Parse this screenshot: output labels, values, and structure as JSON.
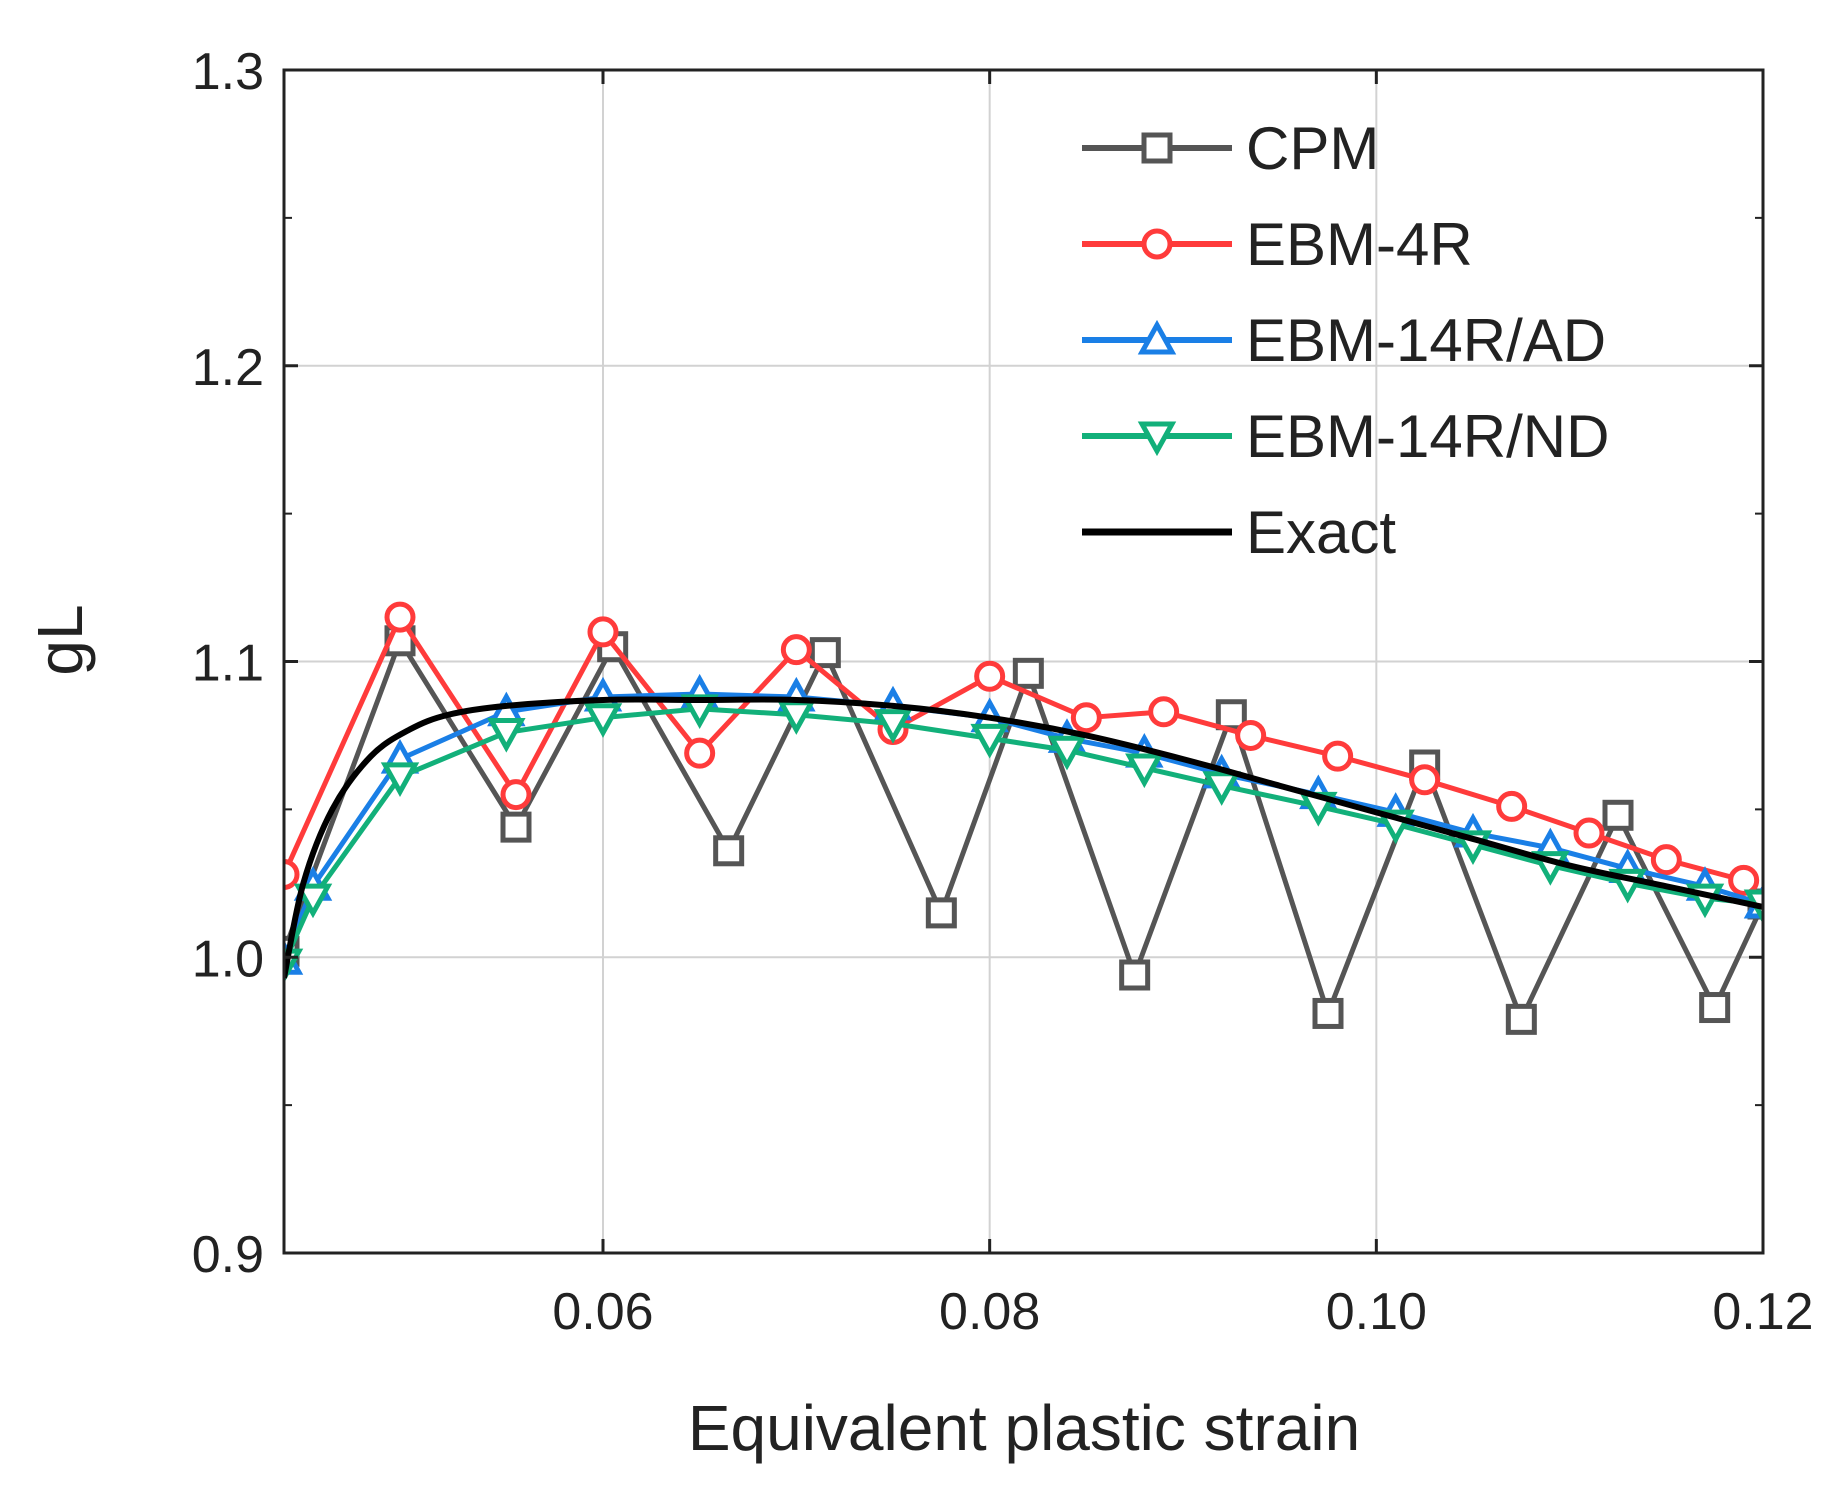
{
  "chart_data": {
    "type": "line",
    "title": "",
    "xlabel": "Equivalent plastic strain",
    "ylabel": "gL",
    "xlim": [
      0.0435,
      0.12
    ],
    "ylim": [
      0.9,
      1.3
    ],
    "grid": true,
    "legend_position": "top-right",
    "x_ticks": [
      0.06,
      0.08,
      0.1,
      0.12
    ],
    "x_tick_labels": [
      "0.06",
      "0.08",
      "0.10",
      "0.12"
    ],
    "y_ticks": [
      0.9,
      1.0,
      1.1,
      1.2,
      1.3
    ],
    "y_tick_labels": [
      "0.9",
      "1.0",
      "1.1",
      "1.2",
      "1.3"
    ],
    "y_minor_ticks": [
      0.95,
      1.05,
      1.15,
      1.25
    ],
    "series": [
      {
        "name": "CPM",
        "color": "#555555",
        "marker": "square",
        "x": [
          0.0435,
          0.0495,
          0.0555,
          0.0605,
          0.0665,
          0.0715,
          0.0775,
          0.082,
          0.0875,
          0.0925,
          0.0975,
          0.1025,
          0.1075,
          0.1125,
          0.1175,
          0.12
        ],
        "y": [
          1.002,
          1.107,
          1.044,
          1.105,
          1.036,
          1.103,
          1.015,
          1.096,
          0.994,
          1.082,
          0.981,
          1.065,
          0.979,
          1.048,
          0.983,
          1.018
        ]
      },
      {
        "name": "EBM-4R",
        "color": "#ff3b3b",
        "marker": "circle",
        "x": [
          0.0435,
          0.0495,
          0.0555,
          0.06,
          0.065,
          0.07,
          0.075,
          0.08,
          0.085,
          0.089,
          0.0935,
          0.098,
          0.1025,
          0.107,
          0.111,
          0.115,
          0.119
        ],
        "y": [
          1.028,
          1.115,
          1.055,
          1.11,
          1.069,
          1.104,
          1.077,
          1.095,
          1.081,
          1.083,
          1.075,
          1.068,
          1.06,
          1.051,
          1.042,
          1.033,
          1.026
        ]
      },
      {
        "name": "EBM-14R/AD",
        "color": "#1a7fe6",
        "marker": "triangle-up",
        "x": [
          0.0435,
          0.045,
          0.0495,
          0.055,
          0.06,
          0.065,
          0.07,
          0.075,
          0.08,
          0.084,
          0.088,
          0.092,
          0.097,
          0.101,
          0.105,
          0.109,
          0.113,
          0.117,
          0.12
        ],
        "y": [
          0.999,
          1.024,
          1.067,
          1.083,
          1.088,
          1.089,
          1.088,
          1.085,
          1.081,
          1.074,
          1.069,
          1.062,
          1.055,
          1.049,
          1.042,
          1.037,
          1.03,
          1.024,
          1.018
        ]
      },
      {
        "name": "EBM-14R/ND",
        "color": "#12b07a",
        "marker": "triangle-down",
        "x": [
          0.0435,
          0.045,
          0.0495,
          0.055,
          0.06,
          0.065,
          0.07,
          0.075,
          0.08,
          0.084,
          0.088,
          0.092,
          0.097,
          0.101,
          0.105,
          0.109,
          0.113,
          0.117,
          0.12
        ],
        "y": [
          0.998,
          1.02,
          1.061,
          1.076,
          1.081,
          1.084,
          1.082,
          1.079,
          1.074,
          1.07,
          1.064,
          1.058,
          1.051,
          1.045,
          1.038,
          1.031,
          1.025,
          1.02,
          1.018
        ]
      },
      {
        "name": "Exact",
        "color": "#000000",
        "marker": "none",
        "x": [
          0.0435,
          0.0445,
          0.046,
          0.048,
          0.05,
          0.052,
          0.055,
          0.06,
          0.065,
          0.07,
          0.075,
          0.08,
          0.085,
          0.09,
          0.095,
          0.1,
          0.105,
          0.11,
          0.115,
          0.12
        ],
        "y": [
          0.993,
          1.025,
          1.05,
          1.068,
          1.077,
          1.082,
          1.085,
          1.087,
          1.087,
          1.087,
          1.085,
          1.081,
          1.075,
          1.067,
          1.058,
          1.049,
          1.04,
          1.031,
          1.024,
          1.017
        ]
      }
    ]
  }
}
